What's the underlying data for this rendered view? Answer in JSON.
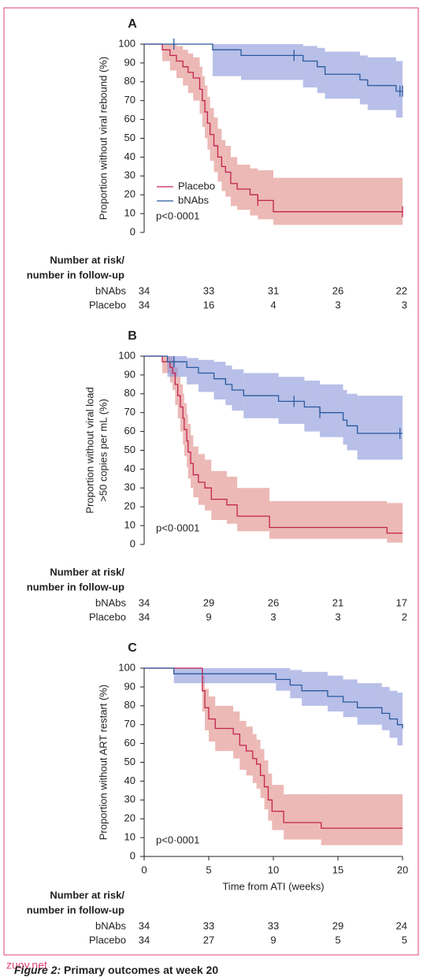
{
  "chart_data": [
    {
      "type": "step",
      "panel_label": "A",
      "ylabel": [
        "Proportion without viral rebound (%)"
      ],
      "ylim": [
        0,
        100
      ],
      "yticks": [
        0,
        10,
        20,
        30,
        40,
        50,
        60,
        70,
        80,
        90,
        100
      ],
      "xlim": [
        0,
        20
      ],
      "annotation": "p<0·0001",
      "legend": "lower left",
      "series": [
        {
          "name": "Placebo",
          "color": "#c3234f",
          "band_color": "#dc7f7a",
          "x": [
            0,
            1.4,
            2,
            2.5,
            3,
            3.4,
            3.8,
            4.3,
            4.5,
            4.7,
            4.9,
            5.1,
            5.4,
            5.7,
            6,
            6.3,
            6.7,
            7.2,
            8.2,
            8.8,
            10,
            20
          ],
          "values": [
            100,
            97,
            94,
            91,
            88,
            85,
            82,
            76,
            70,
            64,
            58,
            52,
            46,
            40,
            35,
            32,
            26,
            23,
            20,
            17,
            11,
            11
          ],
          "ci_lower": [
            100,
            91,
            86,
            82,
            78,
            74,
            70,
            63,
            56,
            50,
            44,
            38,
            32,
            27,
            22,
            19,
            14,
            12,
            9,
            7,
            4,
            4
          ],
          "ci_upper": [
            100,
            100,
            100,
            99,
            97,
            95,
            93,
            88,
            83,
            78,
            72,
            66,
            61,
            55,
            49,
            46,
            40,
            36,
            34,
            33,
            29,
            29
          ],
          "censored": {
            "x": [
              8.8,
              20
            ],
            "y": [
              17,
              11
            ]
          }
        },
        {
          "name": "bNAbs",
          "color": "#2b5a9e",
          "band_color": "#7d8bd6",
          "x": [
            0,
            5.3,
            7.5,
            12.3,
            13.4,
            14,
            16.7,
            17.3,
            19.5,
            20
          ],
          "values": [
            100,
            97,
            94,
            91,
            88,
            84,
            81,
            78,
            75,
            75
          ],
          "ci_lower": [
            100,
            83,
            81,
            77,
            74,
            71,
            68,
            65,
            61,
            61
          ],
          "ci_upper": [
            100,
            100,
            100,
            99,
            98,
            96,
            94,
            93,
            91,
            91
          ],
          "censored": {
            "x": [
              2.3,
              11.6,
              19.8,
              20
            ],
            "y": [
              100,
              94,
              75,
              75
            ]
          }
        }
      ],
      "risk_table": {
        "title": [
          "Number at risk/",
          "number in follow-up"
        ],
        "rows": [
          {
            "name": "bNAbs",
            "counts": [
              34,
              33,
              31,
              26,
              22
            ]
          },
          {
            "name": "Placebo",
            "counts": [
              34,
              16,
              4,
              3,
              3
            ]
          }
        ]
      }
    },
    {
      "type": "step",
      "panel_label": "B",
      "ylabel": [
        "Proportion without viral load",
        ">50 copies per mL (%)"
      ],
      "ylim": [
        0,
        100
      ],
      "yticks": [
        0,
        10,
        20,
        30,
        40,
        50,
        60,
        70,
        80,
        90,
        100
      ],
      "xlim": [
        0,
        20
      ],
      "annotation": "p<0·0001",
      "series": [
        {
          "name": "Placebo",
          "color": "#c3234f",
          "band_color": "#dc7f7a",
          "x": [
            0,
            1.4,
            2,
            2.2,
            2.4,
            2.6,
            2.8,
            3,
            3.1,
            3.3,
            3.4,
            3.6,
            3.8,
            4.2,
            4.7,
            5.2,
            6.4,
            7.2,
            9.7,
            18.8,
            20
          ],
          "values": [
            100,
            97,
            94,
            91,
            85,
            79,
            73,
            67,
            61,
            55,
            49,
            43,
            37,
            33,
            30,
            24,
            21,
            15,
            9,
            6,
            6
          ],
          "ci_lower": [
            100,
            91,
            86,
            82,
            74,
            67,
            60,
            53,
            47,
            41,
            35,
            30,
            25,
            21,
            18,
            13,
            11,
            7,
            3,
            1,
            1
          ],
          "ci_upper": [
            100,
            100,
            100,
            98,
            94,
            89,
            85,
            80,
            75,
            69,
            64,
            58,
            52,
            48,
            45,
            39,
            36,
            30,
            23,
            22,
            22
          ]
        },
        {
          "name": "bNAbs",
          "color": "#2b5a9e",
          "band_color": "#7d8bd6",
          "x": [
            0,
            1.8,
            3.3,
            4.2,
            5.4,
            6.3,
            6.8,
            7.7,
            10.4,
            12.4,
            13.6,
            15.4,
            15.7,
            16.5,
            20
          ],
          "values": [
            100,
            97,
            94,
            91,
            88,
            85,
            82,
            79,
            76,
            73,
            70,
            66,
            63,
            59,
            59
          ],
          "ci_lower": [
            100,
            89,
            85,
            81,
            77,
            74,
            71,
            67,
            64,
            60,
            57,
            53,
            50,
            45,
            45
          ],
          "ci_upper": [
            100,
            100,
            99,
            98,
            97,
            95,
            93,
            91,
            89,
            87,
            85,
            82,
            80,
            79,
            79
          ],
          "censored": {
            "x": [
              2.3,
              11.6,
              13.6,
              19.8
            ],
            "y": [
              97,
              76,
              70,
              59
            ]
          }
        }
      ],
      "risk_table": {
        "title": [
          "Number at risk/",
          "number in follow-up"
        ],
        "rows": [
          {
            "name": "bNAbs",
            "counts": [
              34,
              29,
              26,
              21,
              17
            ]
          },
          {
            "name": "Placebo",
            "counts": [
              34,
              9,
              3,
              3,
              2
            ]
          }
        ]
      }
    },
    {
      "type": "step",
      "panel_label": "C",
      "ylabel": [
        "Proportion without ART restart (%)"
      ],
      "ylim": [
        0,
        100
      ],
      "yticks": [
        0,
        10,
        20,
        30,
        40,
        50,
        60,
        70,
        80,
        90,
        100
      ],
      "xlim": [
        0,
        20
      ],
      "xticks": [
        0,
        5,
        10,
        15,
        20
      ],
      "xlabel": "Time from ATI (weeks)",
      "annotation": "p<0·0001",
      "series": [
        {
          "name": "Placebo",
          "color": "#c3234f",
          "band_color": "#dc7f7a",
          "x": [
            0,
            4.5,
            4.7,
            5,
            5.5,
            6.9,
            7.4,
            7.9,
            8.4,
            8.7,
            9,
            9.3,
            9.6,
            9.9,
            10.8,
            13.7,
            20
          ],
          "values": [
            100,
            88,
            79,
            73,
            68,
            65,
            59,
            56,
            52,
            49,
            43,
            37,
            30,
            24,
            18,
            15,
            15
          ],
          "ci_lower": [
            100,
            77,
            67,
            61,
            56,
            52,
            46,
            43,
            39,
            36,
            31,
            25,
            19,
            14,
            9,
            6,
            6
          ],
          "ci_upper": [
            100,
            96,
            89,
            85,
            80,
            77,
            72,
            69,
            65,
            62,
            57,
            51,
            44,
            38,
            33,
            33,
            33
          ]
        },
        {
          "name": "bNAbs",
          "color": "#2b5a9e",
          "band_color": "#7d8bd6",
          "x": [
            0,
            2.3,
            10.2,
            11.3,
            12.2,
            14.2,
            15.4,
            16.5,
            18.4,
            19,
            19.6,
            20
          ],
          "values": [
            100,
            97,
            94,
            91,
            88,
            85,
            82,
            79,
            76,
            73,
            70,
            68
          ],
          "ci_lower": [
            100,
            92,
            88,
            84,
            80,
            77,
            74,
            70,
            67,
            63,
            59,
            57
          ],
          "ci_upper": [
            100,
            100,
            100,
            99,
            98,
            96,
            94,
            92,
            90,
            88,
            87,
            87
          ]
        }
      ],
      "risk_table": {
        "title": [
          "Number at risk/",
          "number in follow-up"
        ],
        "rows": [
          {
            "name": "bNAbs",
            "counts": [
              34,
              33,
              33,
              29,
              24
            ]
          },
          {
            "name": "Placebo",
            "counts": [
              34,
              27,
              9,
              5,
              5
            ]
          }
        ]
      }
    }
  ],
  "caption": {
    "label": "Figure 2:",
    "text": "Primary outcomes at week 20"
  },
  "watermark": "zuoy.net"
}
